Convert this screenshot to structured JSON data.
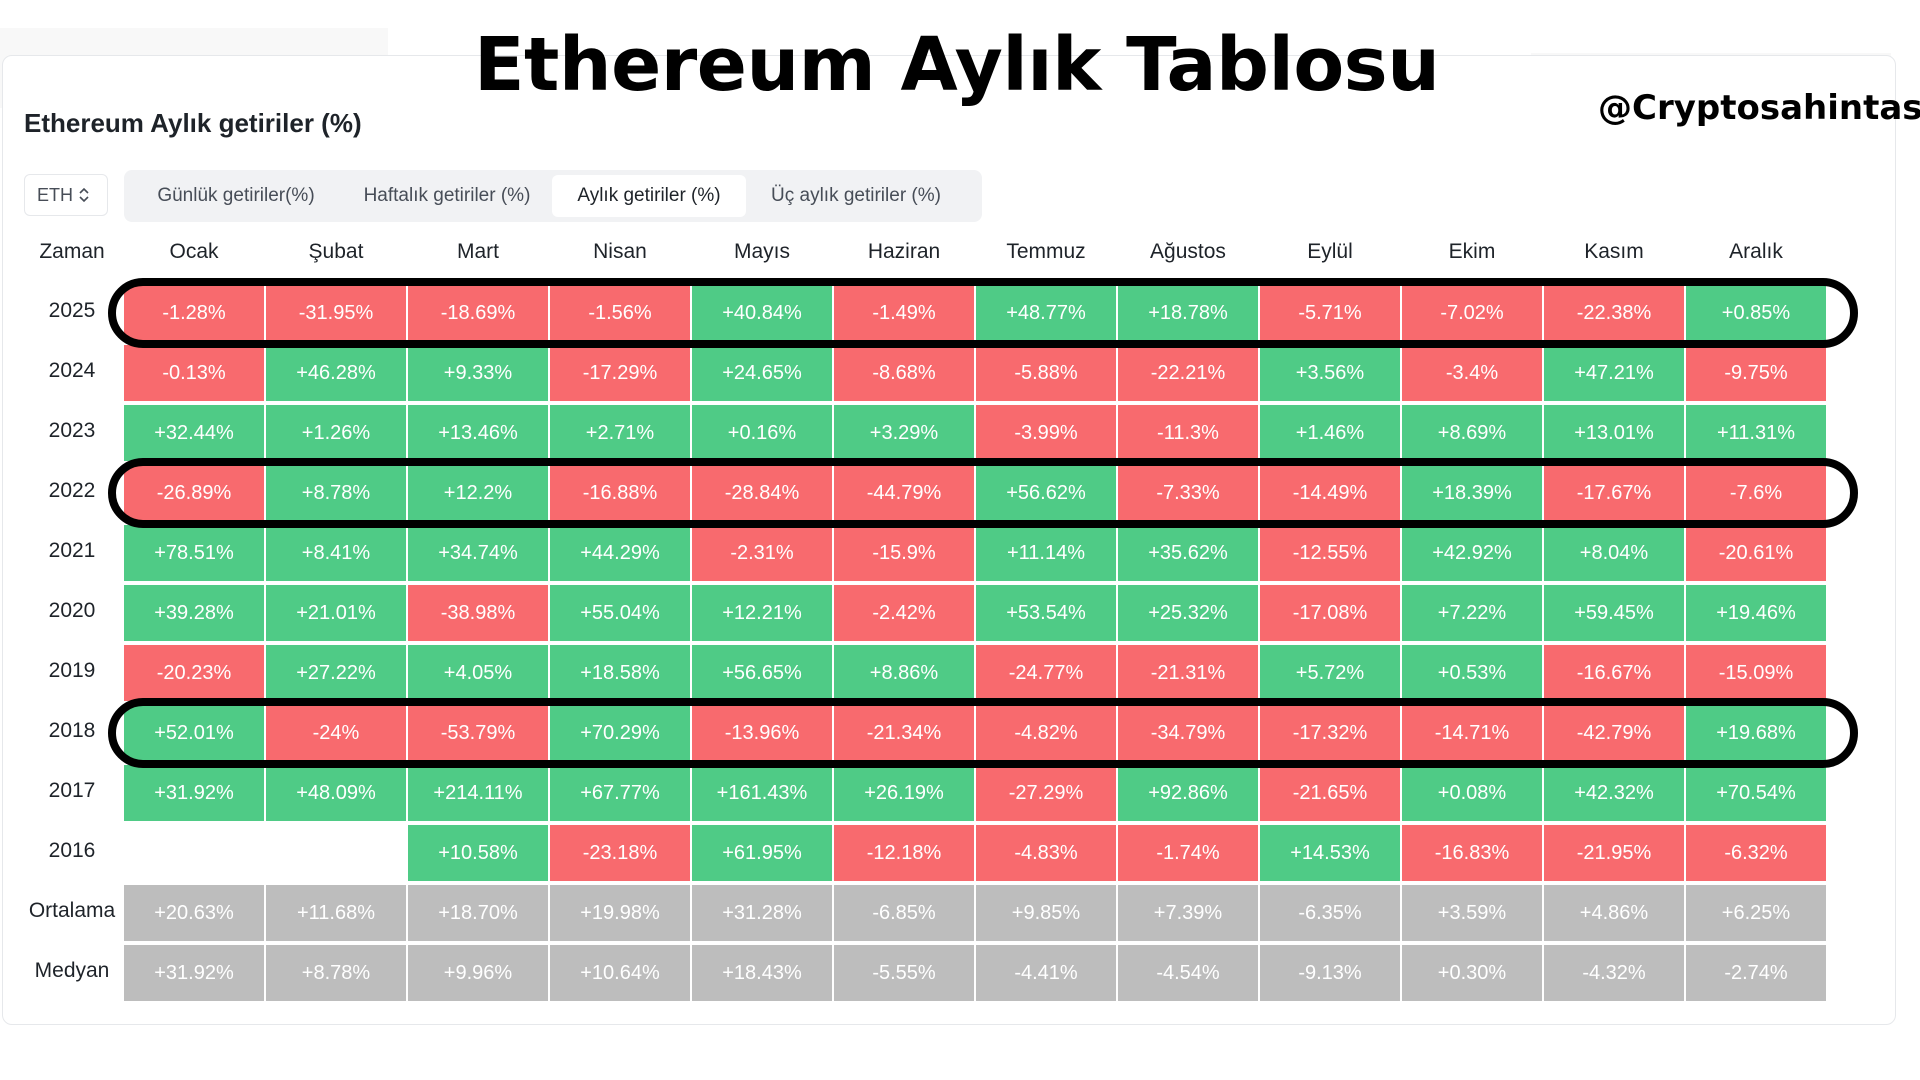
{
  "header": {
    "title": "Ethereum Aylık Tablosu",
    "handle": "@Cryptosahintas"
  },
  "card": {
    "title": "Ethereum Aylık getiriler (%)",
    "asset": "ETH"
  },
  "tabs": [
    {
      "label": "Günlük getiriler(%)",
      "active": false
    },
    {
      "label": "Haftalık getiriler (%)",
      "active": false
    },
    {
      "label": "Aylık getiriler (%)",
      "active": true
    },
    {
      "label": "Üç aylık getiriler (%)",
      "active": false
    }
  ],
  "table": {
    "corner_label": "Zaman",
    "months": [
      "Ocak",
      "Şubat",
      "Mart",
      "Nisan",
      "Mayıs",
      "Haziran",
      "Temmuz",
      "Ağustos",
      "Eylül",
      "Ekim",
      "Kasım",
      "Aralık"
    ],
    "rows": [
      {
        "label": "2025",
        "values": [
          "-1.28%",
          "-31.95%",
          "-18.69%",
          "-1.56%",
          "+40.84%",
          "-1.49%",
          "+48.77%",
          "+18.78%",
          "-5.71%",
          "-7.02%",
          "-22.38%",
          "+0.85%"
        ]
      },
      {
        "label": "2024",
        "values": [
          "-0.13%",
          "+46.28%",
          "+9.33%",
          "-17.29%",
          "+24.65%",
          "-8.68%",
          "-5.88%",
          "-22.21%",
          "+3.56%",
          "-3.4%",
          "+47.21%",
          "-9.75%"
        ]
      },
      {
        "label": "2023",
        "values": [
          "+32.44%",
          "+1.26%",
          "+13.46%",
          "+2.71%",
          "+0.16%",
          "+3.29%",
          "-3.99%",
          "-11.3%",
          "+1.46%",
          "+8.69%",
          "+13.01%",
          "+11.31%"
        ]
      },
      {
        "label": "2022",
        "values": [
          "-26.89%",
          "+8.78%",
          "+12.2%",
          "-16.88%",
          "-28.84%",
          "-44.79%",
          "+56.62%",
          "-7.33%",
          "-14.49%",
          "+18.39%",
          "-17.67%",
          "-7.6%"
        ]
      },
      {
        "label": "2021",
        "values": [
          "+78.51%",
          "+8.41%",
          "+34.74%",
          "+44.29%",
          "-2.31%",
          "-15.9%",
          "+11.14%",
          "+35.62%",
          "-12.55%",
          "+42.92%",
          "+8.04%",
          "-20.61%"
        ]
      },
      {
        "label": "2020",
        "values": [
          "+39.28%",
          "+21.01%",
          "-38.98%",
          "+55.04%",
          "+12.21%",
          "-2.42%",
          "+53.54%",
          "+25.32%",
          "-17.08%",
          "+7.22%",
          "+59.45%",
          "+19.46%"
        ]
      },
      {
        "label": "2019",
        "values": [
          "-20.23%",
          "+27.22%",
          "+4.05%",
          "+18.58%",
          "+56.65%",
          "+8.86%",
          "-24.77%",
          "-21.31%",
          "+5.72%",
          "+0.53%",
          "-16.67%",
          "-15.09%"
        ]
      },
      {
        "label": "2018",
        "values": [
          "+52.01%",
          "-24%",
          "-53.79%",
          "+70.29%",
          "-13.96%",
          "-21.34%",
          "-4.82%",
          "-34.79%",
          "-17.32%",
          "-14.71%",
          "-42.79%",
          "+19.68%"
        ]
      },
      {
        "label": "2017",
        "values": [
          "+31.92%",
          "+48.09%",
          "+214.11%",
          "+67.77%",
          "+161.43%",
          "+26.19%",
          "-27.29%",
          "+92.86%",
          "-21.65%",
          "+0.08%",
          "+42.32%",
          "+70.54%"
        ]
      },
      {
        "label": "2016",
        "values": [
          "",
          "",
          "+10.58%",
          "-23.18%",
          "+61.95%",
          "-12.18%",
          "-4.83%",
          "-1.74%",
          "+14.53%",
          "-16.83%",
          "-21.95%",
          "-6.32%"
        ]
      }
    ],
    "summary_rows": [
      {
        "label": "Ortalama",
        "values": [
          "+20.63%",
          "+11.68%",
          "+18.70%",
          "+19.98%",
          "+31.28%",
          "-6.85%",
          "+9.85%",
          "+7.39%",
          "-6.35%",
          "+3.59%",
          "+4.86%",
          "+6.25%"
        ]
      },
      {
        "label": "Medyan",
        "values": [
          "+31.92%",
          "+8.78%",
          "+9.96%",
          "+10.64%",
          "+18.43%",
          "-5.55%",
          "-4.41%",
          "-4.54%",
          "-9.13%",
          "+0.30%",
          "-4.32%",
          "-2.74%"
        ]
      }
    ],
    "highlighted_years": [
      "2025",
      "2022",
      "2018"
    ]
  },
  "colors": {
    "positive": "#4fcb86",
    "negative": "#f86a6e",
    "summary": "#bdbdbd",
    "highlight_ring": "#000000"
  }
}
